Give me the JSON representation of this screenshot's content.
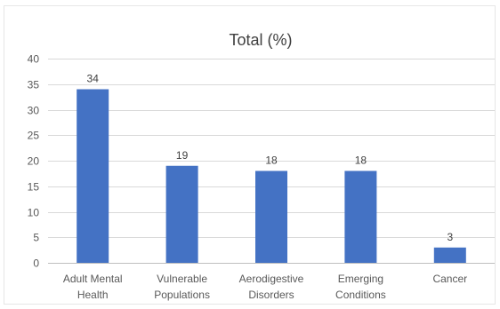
{
  "chart_data": {
    "type": "bar",
    "title": "Total (%)",
    "xlabel": "",
    "ylabel": "",
    "categories": [
      [
        "Adult Mental",
        "Health"
      ],
      [
        "Vulnerable",
        "Populations"
      ],
      [
        "Aerodigestive",
        "Disorders"
      ],
      [
        "Emerging",
        "Conditions"
      ],
      [
        "Cancer"
      ]
    ],
    "values": [
      34,
      19,
      18,
      18,
      3
    ],
    "ylim": [
      0,
      40
    ],
    "yticks": [
      0,
      5,
      10,
      15,
      20,
      25,
      30,
      35,
      40
    ],
    "grid": true,
    "legend": "none",
    "bar_color": "#4472c4",
    "data_labels": [
      "34",
      "19",
      "18",
      "18",
      "3"
    ]
  }
}
